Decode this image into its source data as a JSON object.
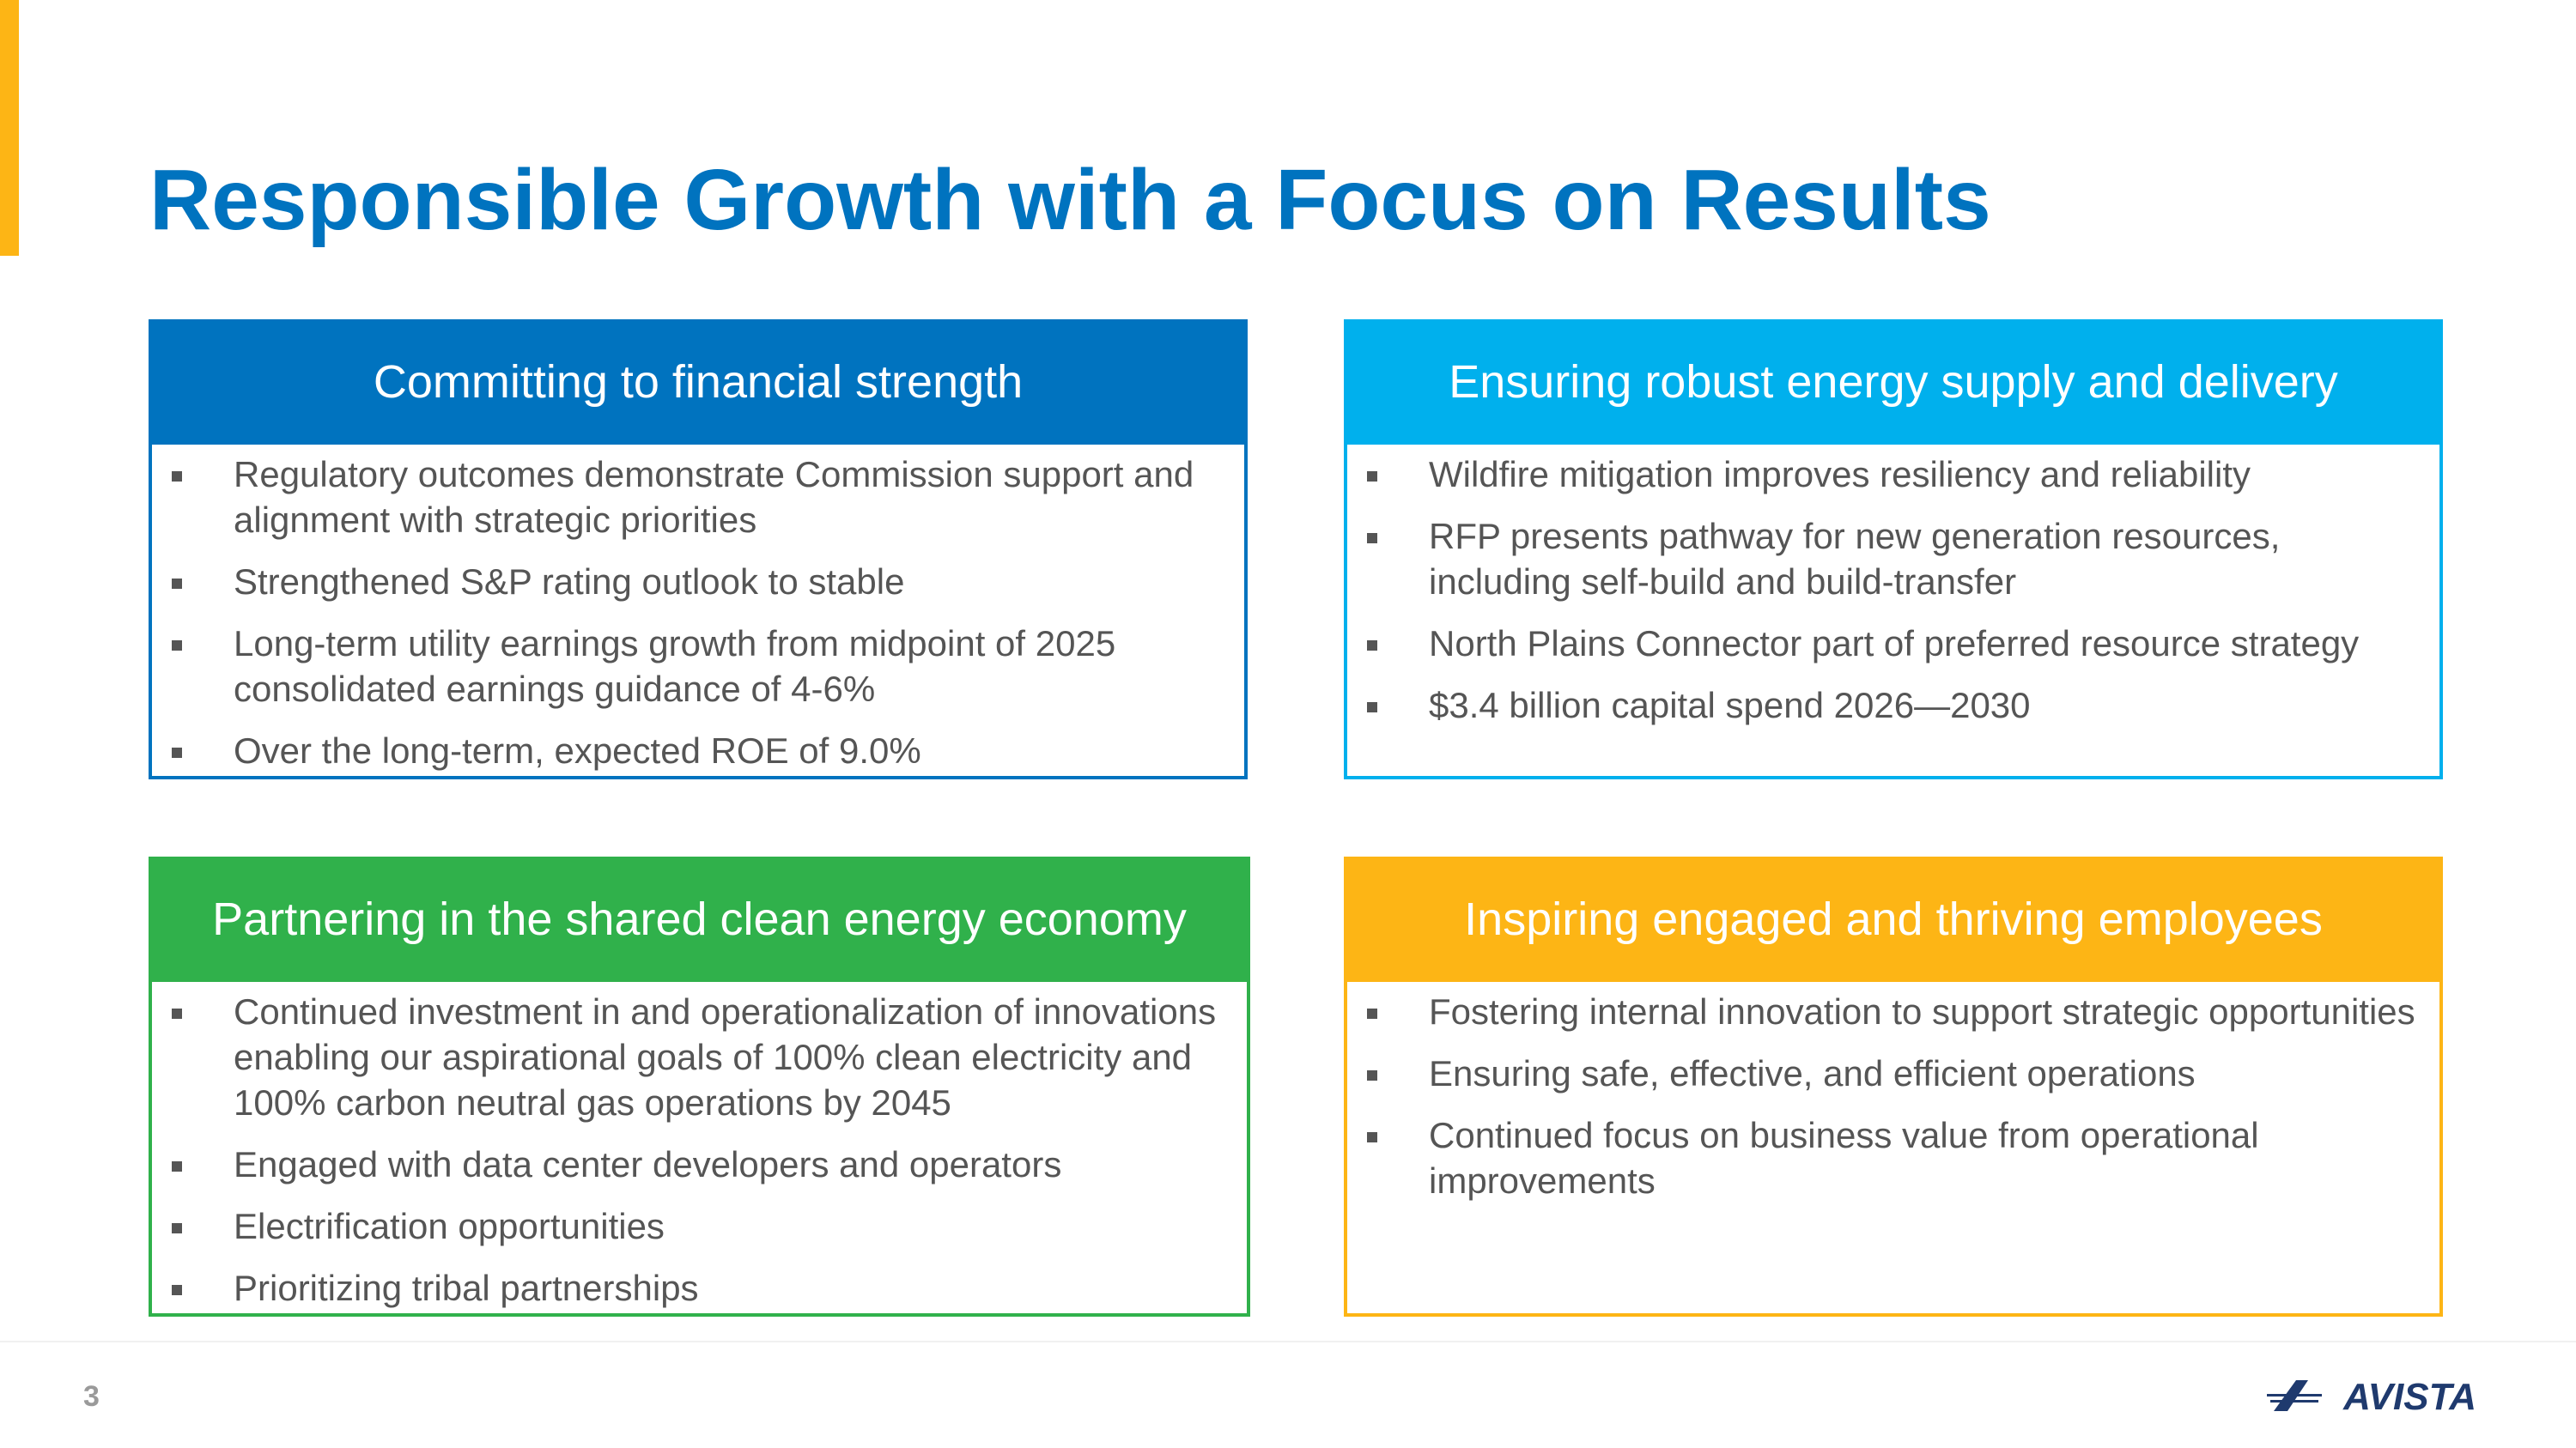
{
  "slide": {
    "title": "Responsible Growth with a Focus on Results",
    "page_number": "3",
    "logo_text": "AVISTA"
  },
  "colors": {
    "title": "#0073BF",
    "accent": "#FDB515",
    "financial": "#0073BF",
    "energy": "#00B0ED",
    "clean": "#30B14B",
    "employees": "#FDB515",
    "logo": "#1F3A6E"
  },
  "cards": [
    {
      "title": "Committing to financial strength",
      "items": [
        "Regulatory outcomes demonstrate Commission support and alignment with strategic priorities",
        "Strengthened S&P rating outlook to stable",
        "Long-term utility earnings growth from midpoint of 2025 consolidated earnings guidance of 4-6%",
        "Over the long-term, expected ROE of 9.0%"
      ]
    },
    {
      "title": "Ensuring robust energy supply and delivery",
      "items": [
        "Wildfire mitigation improves resiliency and reliability",
        "RFP presents pathway for new generation resources, including self-build and build-transfer",
        "North Plains Connector part of preferred resource strategy",
        "$3.4 billion capital spend 2026—2030"
      ]
    },
    {
      "title": "Partnering in the shared clean energy economy",
      "items": [
        "Continued investment in and operationalization of innovations enabling our aspirational goals of 100% clean electricity and 100% carbon neutral gas operations by 2045",
        "Engaged with data center developers and operators",
        "Electrification opportunities",
        "Prioritizing tribal partnerships"
      ]
    },
    {
      "title": "Inspiring engaged and thriving employees",
      "items": [
        "Fostering internal innovation to support strategic opportunities",
        "Ensuring safe, effective, and efficient operations",
        "Continued focus on business value from operational improvements"
      ]
    }
  ]
}
